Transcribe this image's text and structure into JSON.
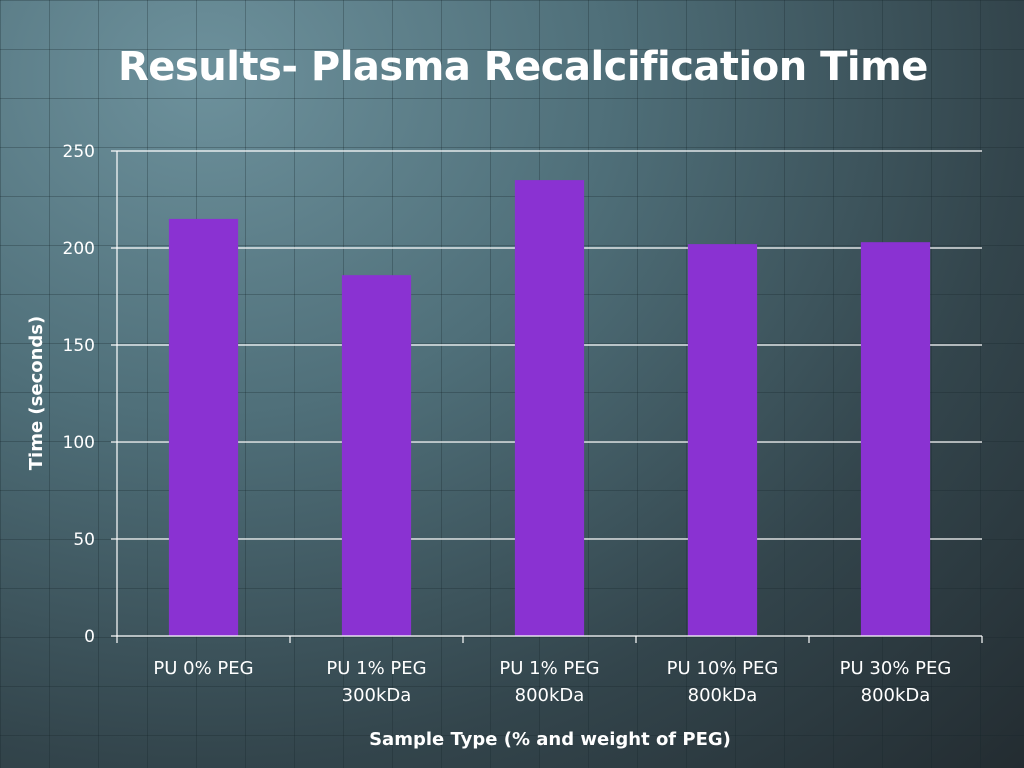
{
  "slide": {
    "title": "Results- Plasma Recalcification Time"
  },
  "chart_data": {
    "type": "bar",
    "categories": [
      [
        "PU 0% PEG"
      ],
      [
        "PU 1% PEG",
        "300kDa"
      ],
      [
        "PU 1% PEG",
        "800kDa"
      ],
      [
        "PU 10% PEG",
        "800kDa"
      ],
      [
        "PU 30% PEG",
        "800kDa"
      ]
    ],
    "values": [
      215,
      186,
      235,
      202,
      203
    ],
    "xlabel": "Sample Type (% and weight of PEG)",
    "ylabel": "Time (seconds)",
    "ylim": [
      0,
      250
    ],
    "yticks": [
      0,
      50,
      100,
      150,
      200,
      250
    ],
    "grid": true,
    "legend": "none",
    "colors": {
      "bar": "#8a32d2",
      "grid": "#ffffff",
      "text": "#ffffff"
    }
  }
}
